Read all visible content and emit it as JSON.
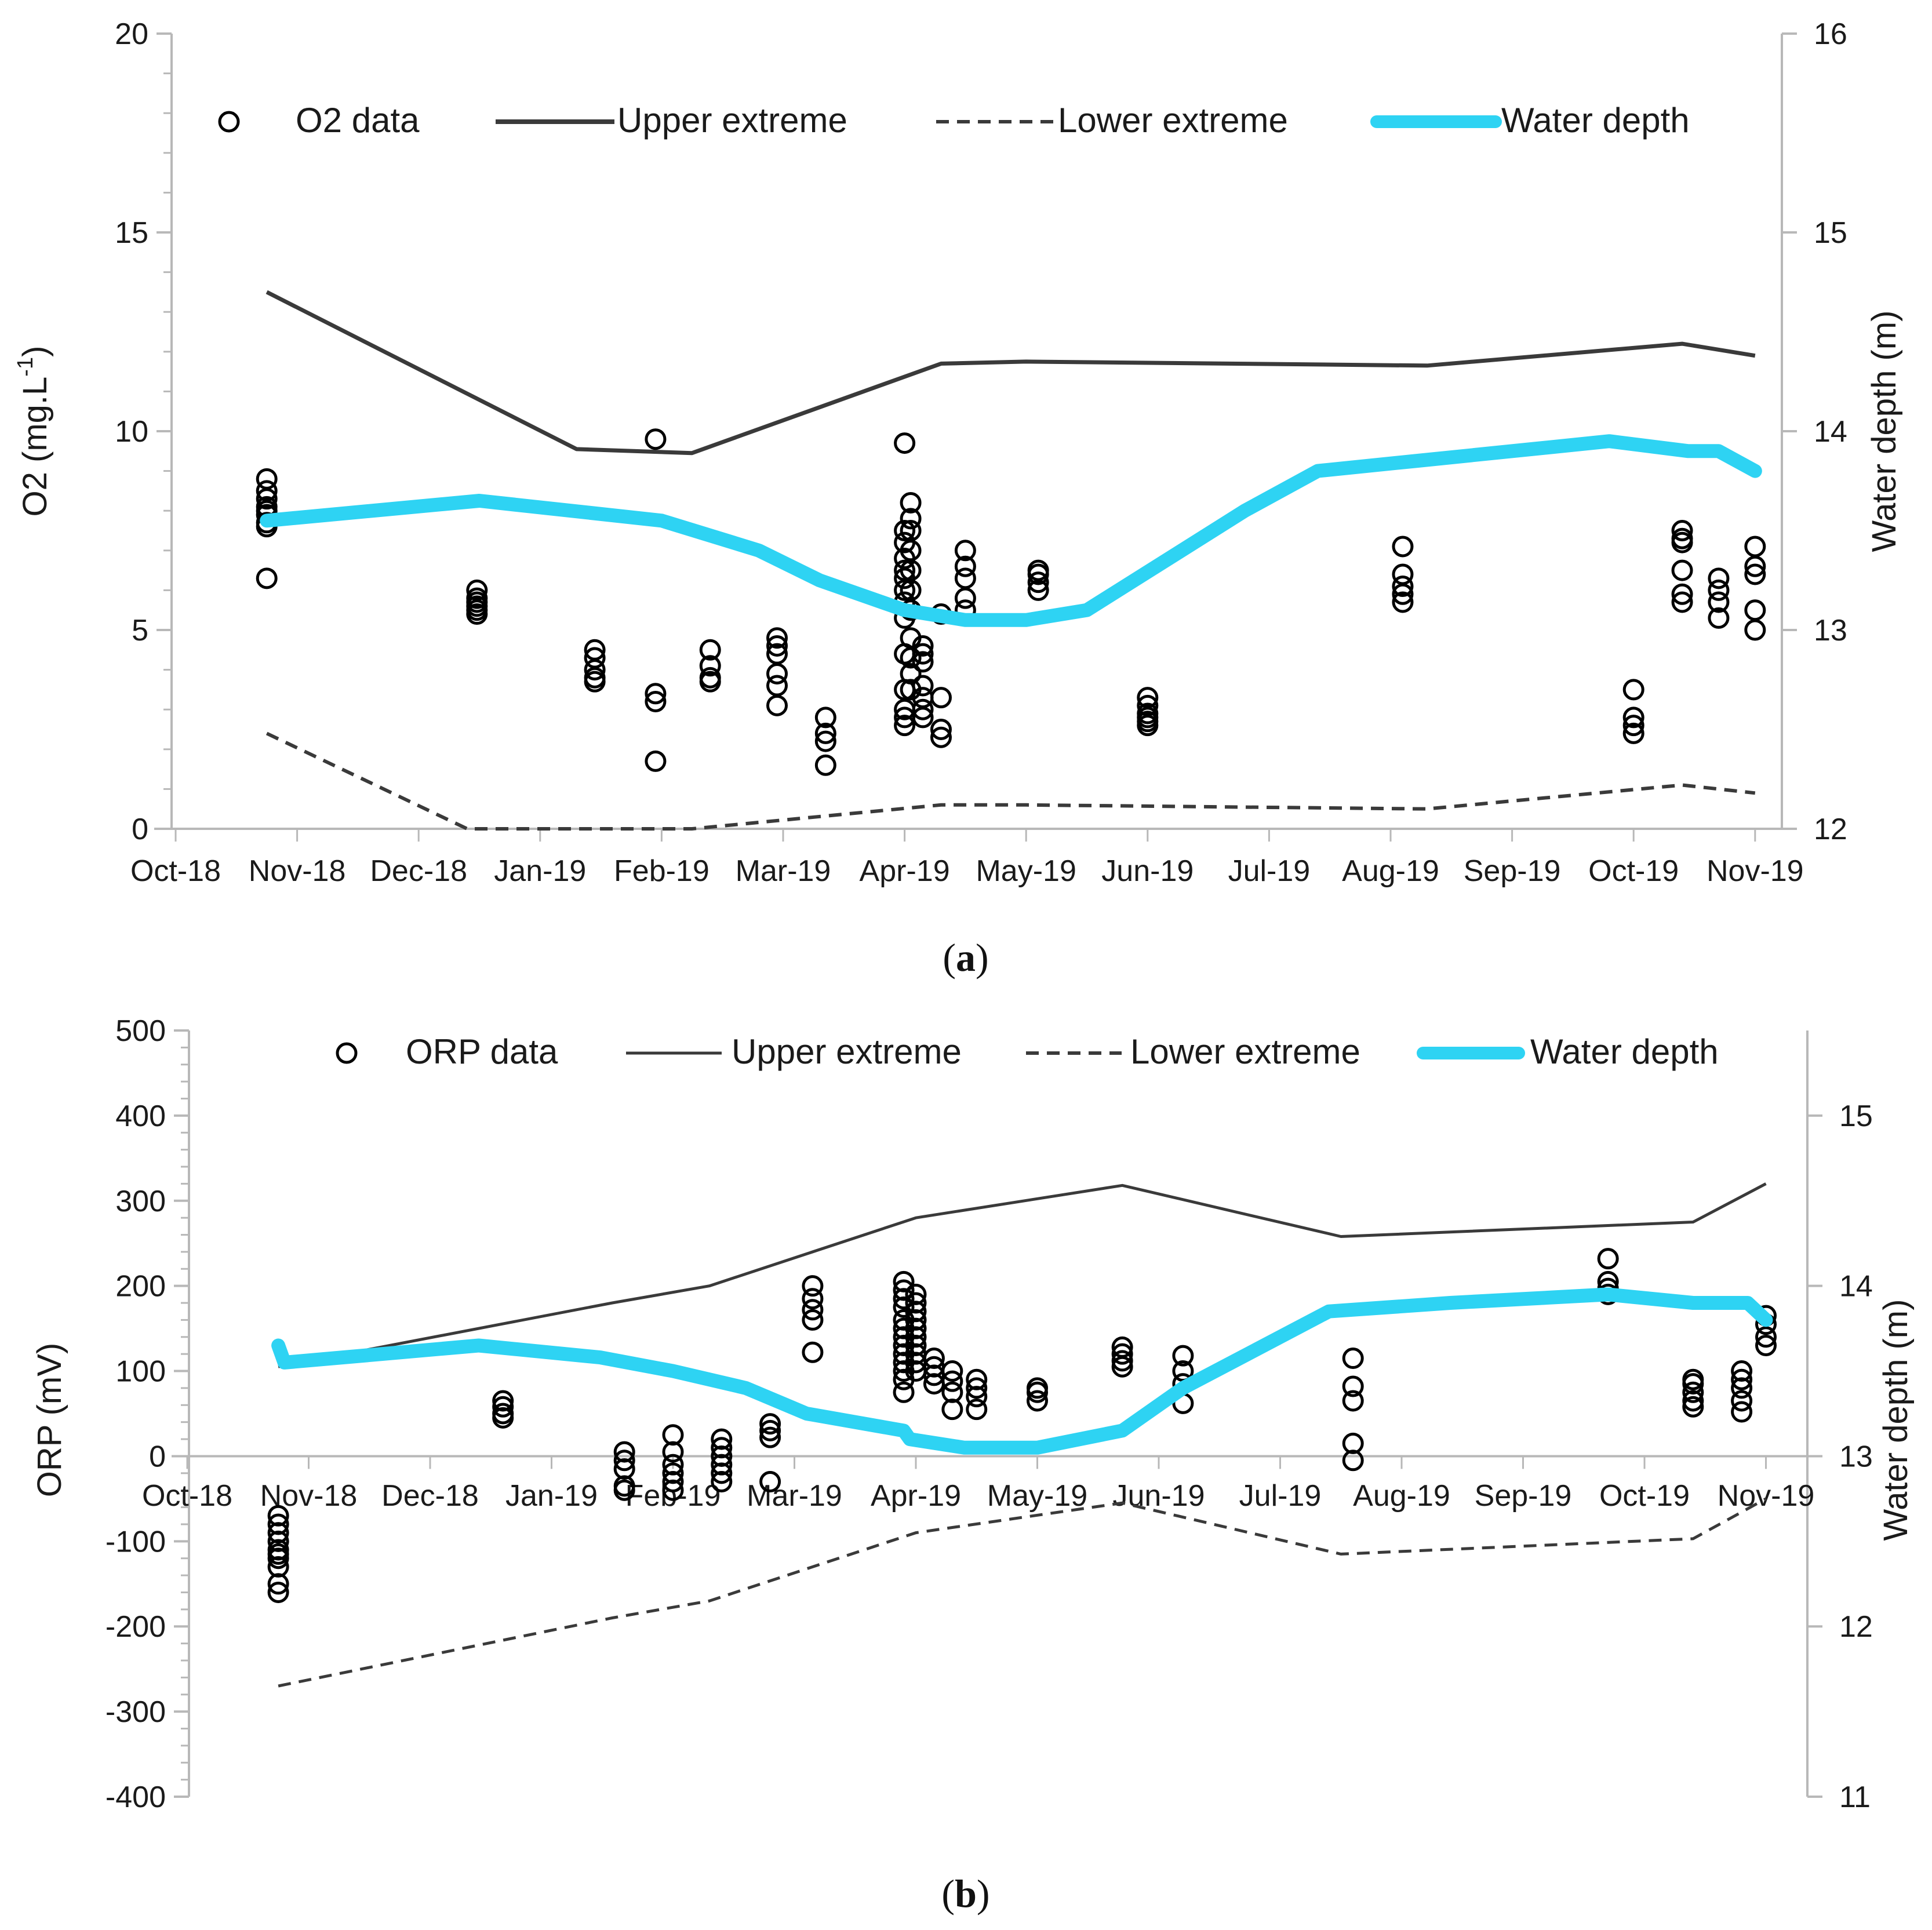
{
  "chart_data": [
    {
      "panel": "a",
      "type": "line",
      "caption_letter": "a",
      "caption_open": "(",
      "caption_close": ")",
      "xlabel": "",
      "x_ticks": [
        "Oct-18",
        "Nov-18",
        "Dec-18",
        "Jan-19",
        "Feb-19",
        "Mar-19",
        "Apr-19",
        "May-19",
        "Jun-19",
        "Jul-19",
        "Aug-19",
        "Sep-19",
        "Oct-19",
        "Nov-19"
      ],
      "ylabel_left": "O2 (mg.L",
      "ylabel_left_sup": "-1",
      "ylabel_left_tail": ")",
      "ylim_left": [
        0,
        20
      ],
      "yticks_left": [
        0,
        5,
        10,
        15,
        20
      ],
      "ylabel_right": "Water depth (m)",
      "ylim_right": [
        12,
        16
      ],
      "yticks_right": [
        12,
        13,
        14,
        15,
        16
      ],
      "legend": [
        {
          "label": "O2 data",
          "style": "marker"
        },
        {
          "label": "Upper extreme",
          "style": "solid"
        },
        {
          "label": "Lower extreme",
          "style": "dashed"
        },
        {
          "label": "Water depth",
          "style": "thick"
        }
      ],
      "series": [
        {
          "name": "Upper extreme",
          "axis": "left",
          "x": [
            0.75,
            3.3,
            4.25,
            6.3,
            7.0,
            10.3,
            12.4,
            13.0
          ],
          "y": [
            13.5,
            9.55,
            9.45,
            11.7,
            11.75,
            11.65,
            12.2,
            11.9
          ]
        },
        {
          "name": "Lower extreme",
          "axis": "left",
          "x": [
            0.75,
            2.4,
            4.25,
            6.3,
            7.0,
            10.3,
            12.4,
            13.0
          ],
          "y": [
            2.4,
            0.0,
            0.0,
            0.6,
            0.6,
            0.5,
            1.1,
            0.9
          ]
        },
        {
          "name": "Water depth",
          "axis": "right",
          "x": [
            0.75,
            2.5,
            4.0,
            4.8,
            5.3,
            6.0,
            6.5,
            7.0,
            7.5,
            8.8,
            9.4,
            10.2,
            11.8,
            12.45,
            12.7,
            13.0
          ],
          "y": [
            13.55,
            13.65,
            13.55,
            13.4,
            13.25,
            13.1,
            13.05,
            13.05,
            13.1,
            13.6,
            13.8,
            13.85,
            13.95,
            13.9,
            13.9,
            13.8
          ]
        },
        {
          "name": "O2 data",
          "axis": "left",
          "marker": "circle",
          "x": [
            0.75,
            0.75,
            0.75,
            0.75,
            0.75,
            0.75,
            0.75,
            0.75,
            0.75,
            2.48,
            2.48,
            2.48,
            2.48,
            2.48,
            2.48,
            3.45,
            3.45,
            3.45,
            3.45,
            3.45,
            3.95,
            3.95,
            3.95,
            3.95,
            4.4,
            4.4,
            4.4,
            4.4,
            4.95,
            4.95,
            4.95,
            4.95,
            4.95,
            4.95,
            5.35,
            5.35,
            5.35,
            5.35,
            6.0,
            6.0,
            6.0,
            6.0,
            6.0,
            6.0,
            6.0,
            6.0,
            6.0,
            6.0,
            6.0,
            6.0,
            6.0,
            6.0,
            6.05,
            6.05,
            6.05,
            6.05,
            6.05,
            6.05,
            6.05,
            6.05,
            6.05,
            6.05,
            6.05,
            6.15,
            6.15,
            6.15,
            6.15,
            6.15,
            6.15,
            6.15,
            6.3,
            6.3,
            6.3,
            6.3,
            6.5,
            6.5,
            6.5,
            6.5,
            6.5,
            7.1,
            7.1,
            7.1,
            7.1,
            8.0,
            8.0,
            8.0,
            8.0,
            8.0,
            8.0,
            10.1,
            10.1,
            10.1,
            10.1,
            10.1,
            12.0,
            12.0,
            12.0,
            12.0,
            12.4,
            12.4,
            12.4,
            12.4,
            12.4,
            12.4,
            12.7,
            12.7,
            12.7,
            12.7,
            13.0,
            13.0,
            13.0,
            13.0,
            13.0
          ],
          "y": [
            8.8,
            8.5,
            8.3,
            8.1,
            7.9,
            7.7,
            7.6,
            6.3,
            8.0,
            6.0,
            5.8,
            5.6,
            5.5,
            5.4,
            5.7,
            4.5,
            4.3,
            4.0,
            3.8,
            3.7,
            9.8,
            3.4,
            3.2,
            1.7,
            4.5,
            4.1,
            3.8,
            3.7,
            4.8,
            4.6,
            4.4,
            3.9,
            3.6,
            3.1,
            2.8,
            2.4,
            2.2,
            1.6,
            9.7,
            7.5,
            7.2,
            6.8,
            6.5,
            6.3,
            6.0,
            5.7,
            5.3,
            4.4,
            3.5,
            3.0,
            2.8,
            2.6,
            8.2,
            7.8,
            7.5,
            7.0,
            6.5,
            6.0,
            5.5,
            4.8,
            4.3,
            3.9,
            3.5,
            4.6,
            4.4,
            4.2,
            3.6,
            3.3,
            3.0,
            2.8,
            5.4,
            3.3,
            2.5,
            2.3,
            7.0,
            6.6,
            6.3,
            5.8,
            5.5,
            6.5,
            6.4,
            6.2,
            6.0,
            3.3,
            3.1,
            2.9,
            2.8,
            2.7,
            2.6,
            7.1,
            6.4,
            6.1,
            5.9,
            5.7,
            3.5,
            2.8,
            2.6,
            2.4,
            7.5,
            7.3,
            7.2,
            6.5,
            5.9,
            5.7,
            6.3,
            6.0,
            5.7,
            5.3,
            7.1,
            6.6,
            6.4,
            5.5,
            5.0
          ]
        }
      ]
    },
    {
      "panel": "b",
      "type": "line",
      "caption_letter": "b",
      "caption_open": "(",
      "caption_close": ")",
      "xlabel": "",
      "x_ticks": [
        "Oct-18",
        "Nov-18",
        "Dec-18",
        "Jan-19",
        "Feb-19",
        "Mar-19",
        "Apr-19",
        "May-19",
        "Jun-19",
        "Jul-19",
        "Aug-19",
        "Sep-19",
        "Oct-19",
        "Nov-19"
      ],
      "ylabel_left": "ORP (mV)",
      "ylim_left": [
        -400,
        500
      ],
      "yticks_left": [
        -400,
        -300,
        -200,
        -100,
        0,
        100,
        200,
        300,
        400,
        500
      ],
      "ylabel_right": "Water depth (m)",
      "ylim_right": [
        11,
        15.5
      ],
      "yticks_right": [
        11,
        12,
        13,
        14,
        15
      ],
      "legend": [
        {
          "label": "ORP data",
          "style": "marker"
        },
        {
          "label": "Upper extreme",
          "style": "solid"
        },
        {
          "label": "Lower extreme",
          "style": "dashed"
        },
        {
          "label": "Water depth",
          "style": "thick"
        }
      ],
      "series": [
        {
          "name": "Upper extreme",
          "axis": "left",
          "x": [
            0.75,
            3.5,
            4.3,
            6.0,
            7.7,
            9.5,
            12.4,
            13.0
          ],
          "y": [
            105,
            180,
            200,
            280,
            318,
            258,
            275,
            320
          ]
        },
        {
          "name": "Lower extreme",
          "axis": "left",
          "x": [
            0.75,
            3.5,
            4.3,
            6.0,
            7.7,
            9.5,
            12.4,
            13.0
          ],
          "y": [
            -270,
            -190,
            -170,
            -90,
            -55,
            -115,
            -97,
            -50
          ]
        },
        {
          "name": "Water depth",
          "axis": "right",
          "x": [
            0.75,
            0.8,
            2.4,
            3.4,
            4.0,
            4.6,
            5.1,
            5.9,
            5.95,
            6.4,
            7.0,
            7.7,
            8.2,
            9.4,
            10.4,
            11.7,
            12.4,
            12.85,
            13.0
          ],
          "y": [
            13.65,
            13.55,
            13.65,
            13.58,
            13.5,
            13.4,
            13.25,
            13.15,
            13.1,
            13.05,
            13.05,
            13.15,
            13.4,
            13.85,
            13.9,
            13.95,
            13.9,
            13.9,
            13.8
          ]
        },
        {
          "name": "ORP data",
          "axis": "left",
          "marker": "circle",
          "x": [
            0.75,
            0.75,
            0.75,
            0.75,
            0.75,
            0.75,
            0.75,
            0.75,
            0.75,
            0.75,
            2.6,
            2.6,
            2.6,
            2.6,
            3.6,
            3.6,
            3.6,
            3.6,
            3.6,
            4.0,
            4.0,
            4.0,
            4.0,
            4.0,
            4.0,
            4.4,
            4.4,
            4.4,
            4.4,
            4.4,
            4.4,
            4.8,
            4.8,
            4.8,
            4.8,
            5.15,
            5.15,
            5.15,
            5.15,
            5.15,
            5.9,
            5.9,
            5.9,
            5.9,
            5.9,
            5.9,
            5.9,
            5.9,
            5.9,
            5.9,
            5.9,
            5.9,
            5.9,
            6.0,
            6.0,
            6.0,
            6.0,
            6.0,
            6.0,
            6.0,
            6.0,
            6.0,
            6.0,
            6.15,
            6.15,
            6.15,
            6.15,
            6.3,
            6.3,
            6.3,
            6.3,
            6.5,
            6.5,
            6.5,
            6.5,
            7.0,
            7.0,
            7.0,
            7.7,
            7.7,
            7.7,
            7.7,
            8.2,
            8.2,
            8.2,
            8.2,
            9.6,
            9.6,
            9.6,
            9.6,
            9.6,
            11.7,
            11.7,
            11.7,
            11.7,
            12.4,
            12.4,
            12.4,
            12.4,
            12.4,
            12.8,
            12.8,
            12.8,
            12.8,
            12.8,
            13.0,
            13.0,
            13.0,
            13.0
          ],
          "y": [
            -70,
            -80,
            -90,
            -100,
            -110,
            -115,
            -120,
            -130,
            -150,
            -160,
            65,
            58,
            50,
            45,
            5,
            -5,
            -15,
            -35,
            -40,
            25,
            5,
            -10,
            -20,
            -30,
            -40,
            20,
            10,
            0,
            -10,
            -20,
            -30,
            38,
            30,
            22,
            -30,
            200,
            185,
            172,
            160,
            122,
            205,
            195,
            185,
            175,
            160,
            150,
            140,
            130,
            120,
            110,
            100,
            90,
            75,
            190,
            180,
            170,
            160,
            150,
            140,
            130,
            120,
            110,
            100,
            115,
            105,
            95,
            85,
            100,
            88,
            75,
            55,
            90,
            80,
            70,
            55,
            80,
            75,
            65,
            128,
            120,
            112,
            105,
            118,
            100,
            85,
            62,
            115,
            82,
            65,
            15,
            -5,
            232,
            205,
            197,
            190,
            90,
            85,
            75,
            65,
            58,
            100,
            90,
            80,
            65,
            52,
            165,
            155,
            140,
            130
          ]
        }
      ]
    }
  ]
}
